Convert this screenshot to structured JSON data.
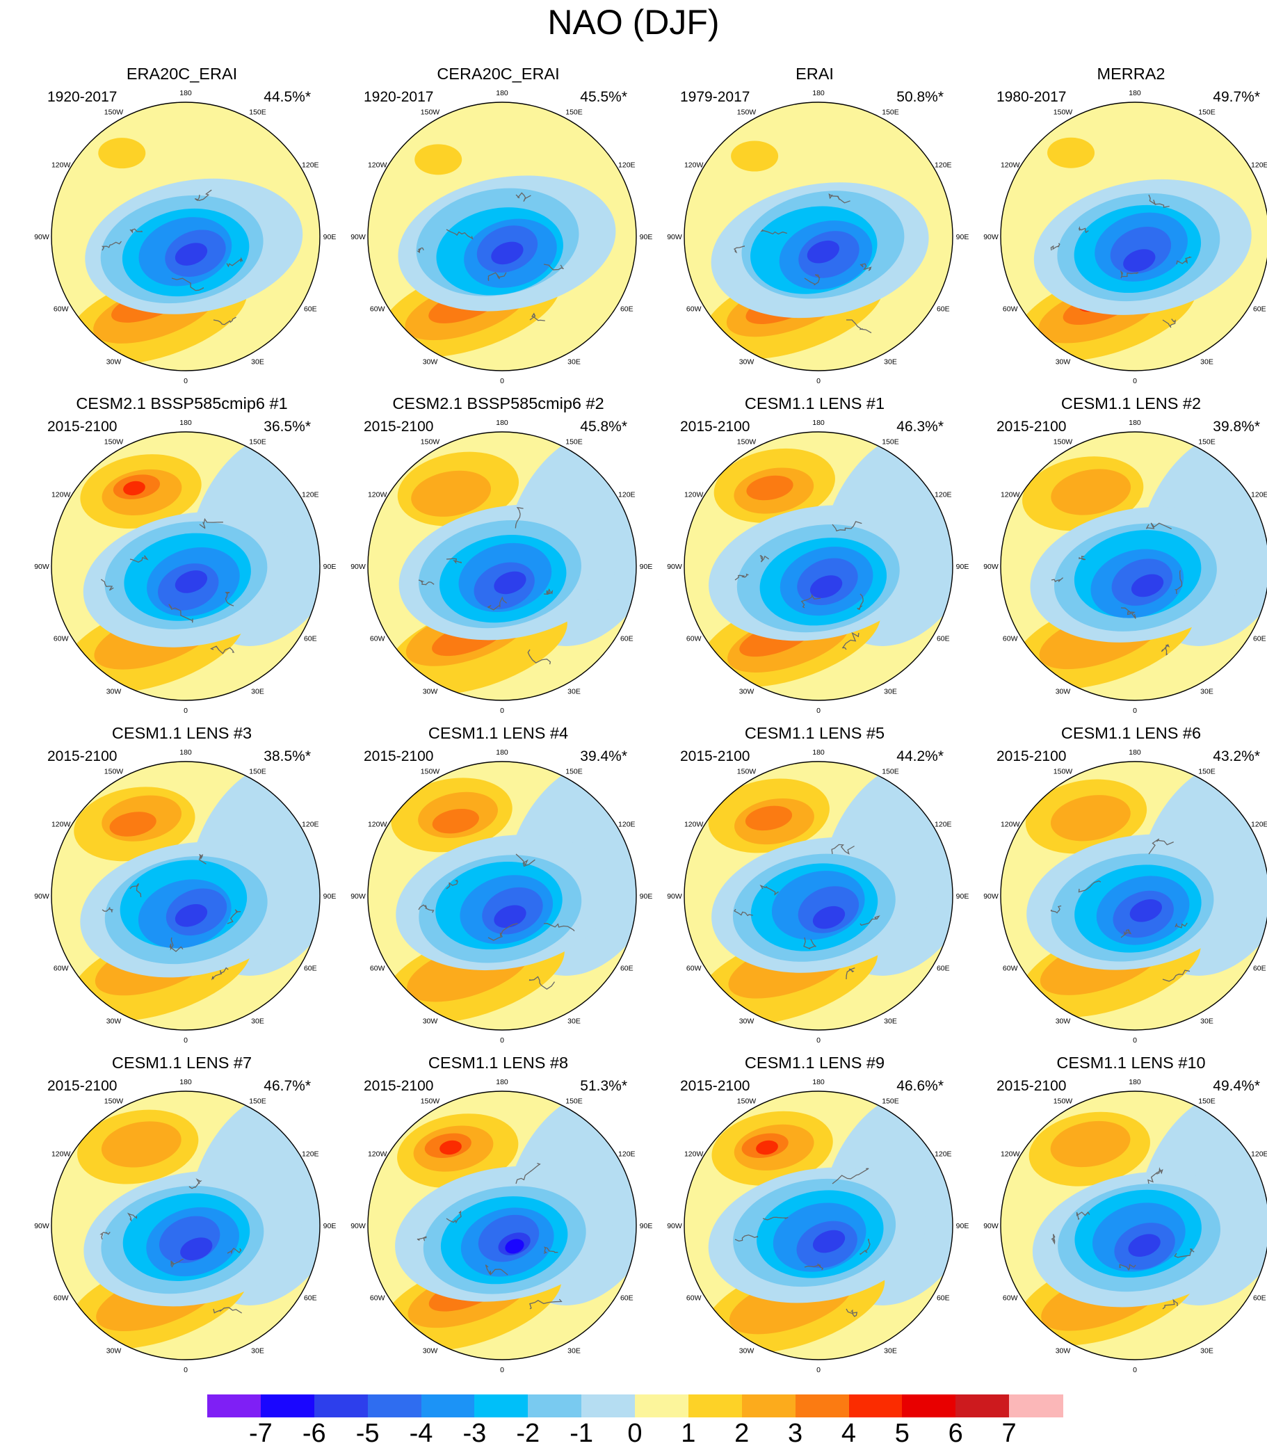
{
  "title": "NAO (DJF)",
  "panels": [
    {
      "title": "ERA20C_ERAI",
      "period": "1920-2017",
      "percent": "44.5%*"
    },
    {
      "title": "CERA20C_ERAI",
      "period": "1920-2017",
      "percent": "45.5%*"
    },
    {
      "title": "ERAI",
      "period": "1979-2017",
      "percent": "50.8%*"
    },
    {
      "title": "MERRA2",
      "period": "1980-2017",
      "percent": "49.7%*"
    },
    {
      "title": "CESM2.1 BSSP585cmip6 #1",
      "period": "2015-2100",
      "percent": "36.5%*"
    },
    {
      "title": "CESM2.1 BSSP585cmip6 #2",
      "period": "2015-2100",
      "percent": "45.8%*"
    },
    {
      "title": "CESM1.1 LENS #1",
      "period": "2015-2100",
      "percent": "46.3%*"
    },
    {
      "title": "CESM1.1 LENS #2",
      "period": "2015-2100",
      "percent": "39.8%*"
    },
    {
      "title": "CESM1.1 LENS #3",
      "period": "2015-2100",
      "percent": "38.5%*"
    },
    {
      "title": "CESM1.1 LENS #4",
      "period": "2015-2100",
      "percent": "39.4%*"
    },
    {
      "title": "CESM1.1 LENS #5",
      "period": "2015-2100",
      "percent": "44.2%*"
    },
    {
      "title": "CESM1.1 LENS #6",
      "period": "2015-2100",
      "percent": "43.2%*"
    },
    {
      "title": "CESM1.1 LENS #7",
      "period": "2015-2100",
      "percent": "46.7%*"
    },
    {
      "title": "CESM1.1 LENS #8",
      "period": "2015-2100",
      "percent": "51.3%*"
    },
    {
      "title": "CESM1.1 LENS #9",
      "period": "2015-2100",
      "percent": "46.6%*"
    },
    {
      "title": "CESM1.1 LENS #10",
      "period": "2015-2100",
      "percent": "49.4%*"
    }
  ],
  "lon_labels": [
    "180",
    "150E",
    "120E",
    "90E",
    "60E",
    "30E",
    "0",
    "30W",
    "60W",
    "90W",
    "120W",
    "150W"
  ],
  "colorbar": {
    "labels": [
      "-7",
      "-6",
      "-5",
      "-4",
      "-3",
      "-2",
      "-1",
      "0",
      "1",
      "2",
      "3",
      "4",
      "5",
      "6",
      "7"
    ],
    "colors": [
      "#7f1ff5",
      "#1a06ff",
      "#2d3fec",
      "#2f6df0",
      "#1c93f6",
      "#00bff9",
      "#79caf0",
      "#b5ddf2",
      "#fcf59b",
      "#fdd227",
      "#fcab1c",
      "#fb7b12",
      "#fb2c00",
      "#e80000",
      "#cd1a1e",
      "#fbb7b8"
    ]
  }
}
